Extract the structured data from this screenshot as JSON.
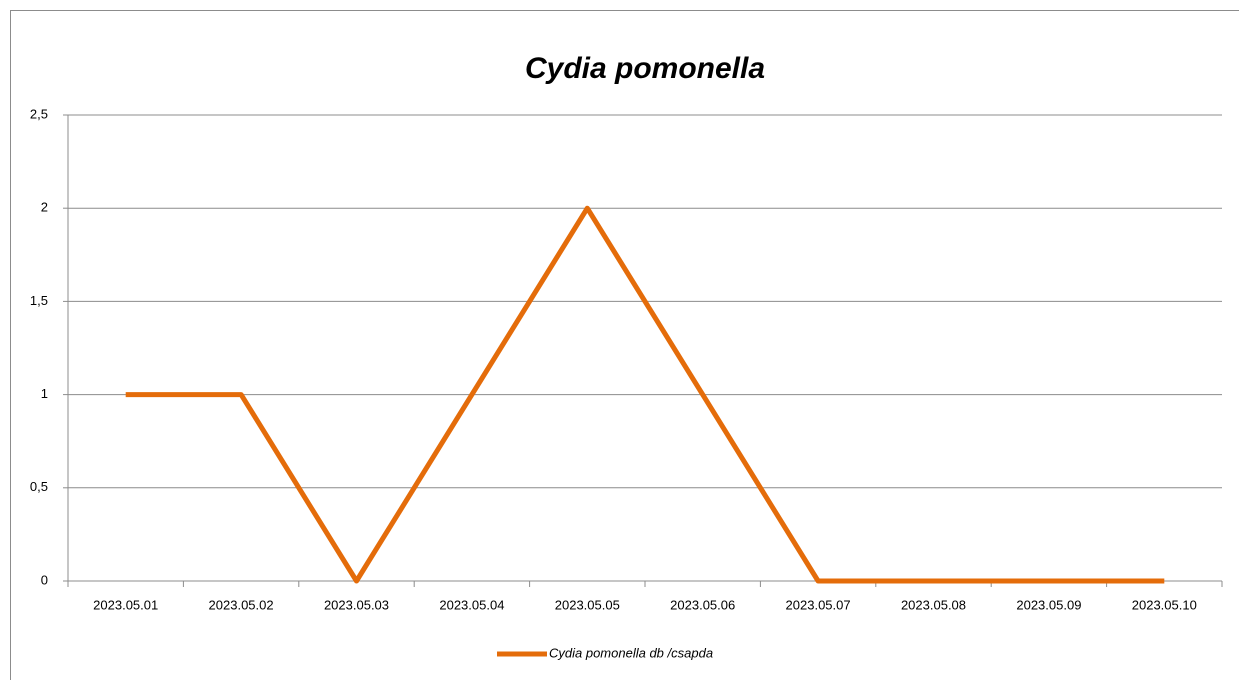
{
  "chart_data": {
    "type": "line",
    "title": "Cydia pomonella",
    "categories": [
      "2023.05.01",
      "2023.05.02",
      "2023.05.03",
      "2023.05.04",
      "2023.05.05",
      "2023.05.06",
      "2023.05.07",
      "2023.05.08",
      "2023.05.09",
      "2023.05.10"
    ],
    "series": [
      {
        "name": "Cydia pomonella db /csapda",
        "color": "#e46c0a",
        "values": [
          1,
          1,
          0,
          1,
          2,
          1,
          0,
          0,
          0,
          0
        ]
      }
    ],
    "ylim": [
      0,
      2.5
    ],
    "yticks": [
      0,
      {
        "value": 0.5,
        "label": "0,5"
      },
      1,
      {
        "value": 1.5,
        "label": "1,5"
      },
      2,
      {
        "value": 2.5,
        "label": "2,5"
      }
    ],
    "grid": true,
    "legend": "bottom"
  }
}
